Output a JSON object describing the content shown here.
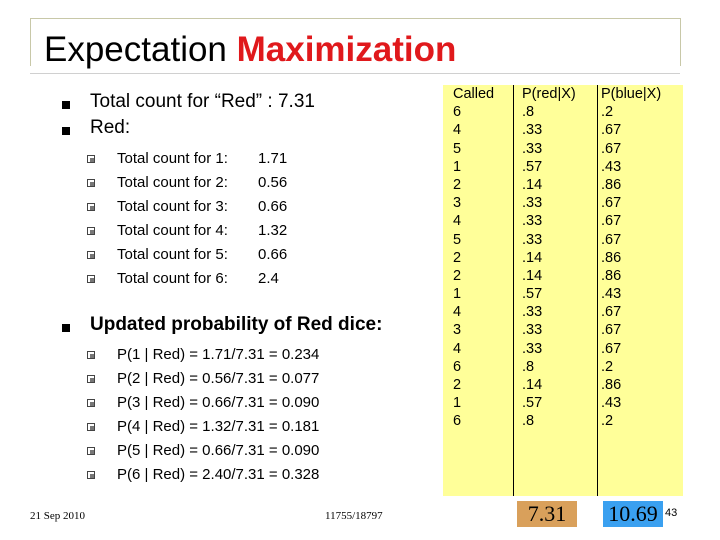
{
  "title": {
    "main": "Expectation ",
    "accent": "Maximization"
  },
  "bullets": {
    "red_total": "Total count for “Red” : 7.31",
    "red_label": "Red:",
    "updated_prob": "Updated probability of Red dice:"
  },
  "red_counts": [
    {
      "label": "Total count for 1:",
      "value": "1.71"
    },
    {
      "label": "Total count for 2:",
      "value": "0.56"
    },
    {
      "label": "Total count for 3:",
      "value": "0.66"
    },
    {
      "label": "Total count for 4:",
      "value": "1.32"
    },
    {
      "label": "Total count for 5:",
      "value": "0.66"
    },
    {
      "label": "Total count for 6:",
      "value": "2.4"
    }
  ],
  "probabilities": [
    "P(1 | Red) = 1.71/7.31 = 0.234",
    "P(2 | Red) = 0.56/7.31 = 0.077",
    "P(3 | Red) = 0.66/7.31 = 0.090",
    "P(4 | Red) = 1.32/7.31 = 0.181",
    "P(5 | Red) = 0.66/7.31 = 0.090",
    "P(6 | Red) = 2.40/7.31 = 0.328"
  ],
  "table": {
    "headers": [
      "Called",
      "P(red|X)",
      "P(blue|X)"
    ],
    "called": [
      "6",
      "4",
      "5",
      "1",
      "2",
      "3",
      "4",
      "5",
      "2",
      "2",
      "1",
      "4",
      "3",
      "4",
      "6",
      "2",
      "1",
      "6"
    ],
    "p_red": [
      ".8",
      ".33",
      ".33",
      ".57",
      ".14",
      ".33",
      ".33",
      ".33",
      ".14",
      ".14",
      ".57",
      ".33",
      ".33",
      ".33",
      ".8",
      ".14",
      ".57",
      ".8"
    ],
    "p_blue": [
      ".2",
      ".67",
      ".67",
      ".43",
      ".86",
      ".67",
      ".67",
      ".67",
      ".86",
      ".86",
      ".43",
      ".67",
      ".67",
      ".67",
      ".2",
      ".86",
      ".43",
      ".2"
    ]
  },
  "totals": {
    "red": "7.31",
    "blue": "10.69"
  },
  "footer": {
    "date": "21 Sep 2010",
    "course": "11755/18797",
    "page": "43"
  },
  "colors": {
    "title_accent": "#e0191c",
    "table_bg": "#ffff99",
    "red_total_bg": "#d9a05b",
    "blue_total_bg": "#3aa0f0"
  }
}
